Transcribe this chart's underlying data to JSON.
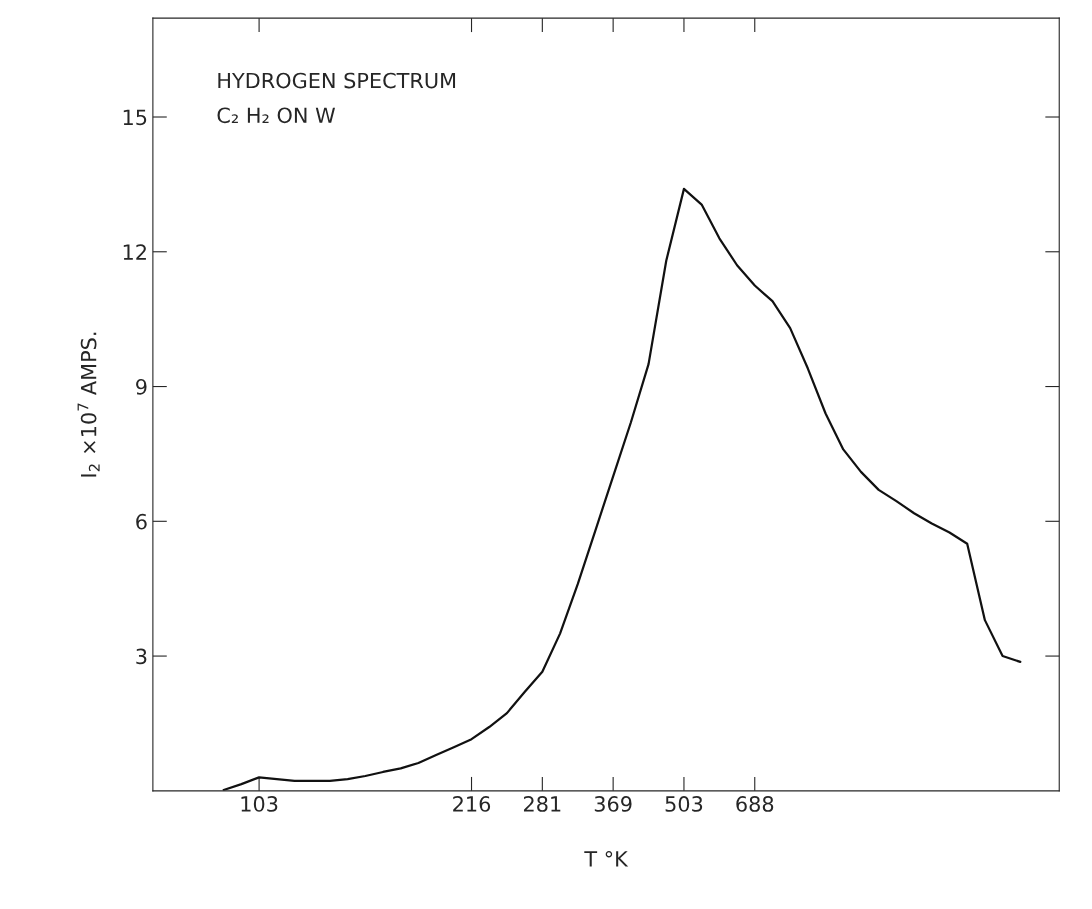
{
  "chart_data": {
    "type": "line",
    "xlabel": "T °K",
    "ylabel": "I$_{2}$ ×10$^{7}$ AMPS.",
    "annotations": [
      "HYDROGEN SPECTRUM",
      "C₂ H₂ ON W"
    ],
    "categories": [
      null,
      null,
      null,
      null,
      null,
      null,
      "103",
      null,
      null,
      null,
      null,
      null,
      null,
      null,
      null,
      null,
      null,
      null,
      "216",
      null,
      null,
      null,
      "281",
      null,
      null,
      null,
      "369",
      null,
      null,
      null,
      "503",
      null,
      null,
      null,
      "688",
      null,
      null,
      null,
      null,
      null,
      null,
      null,
      null,
      null,
      null,
      null,
      null,
      null,
      null,
      null,
      null,
      null
    ],
    "series": [
      {
        "color": "#111111",
        "values": [
          null,
          null,
          null,
          null,
          0.02,
          0.15,
          0.3,
          0.26,
          0.22,
          0.22,
          0.22,
          0.26,
          0.33,
          0.42,
          0.5,
          0.62,
          0.8,
          0.97,
          1.15,
          1.42,
          1.73,
          2.2,
          2.65,
          3.5,
          4.6,
          5.8,
          7.0,
          8.2,
          9.5,
          11.8,
          13.4,
          13.05,
          12.3,
          11.7,
          11.25,
          10.9,
          10.3,
          9.4,
          8.4,
          7.6,
          7.1,
          6.7,
          6.45,
          6.18,
          5.95,
          5.75,
          5.5,
          3.8,
          3.0,
          2.87,
          null,
          null
        ]
      }
    ],
    "ylim": [
      0,
      17.2
    ],
    "yticks": [
      3,
      6,
      9,
      12,
      15
    ],
    "grid": false,
    "legend": false,
    "marker": "none",
    "line_style": "solid"
  }
}
